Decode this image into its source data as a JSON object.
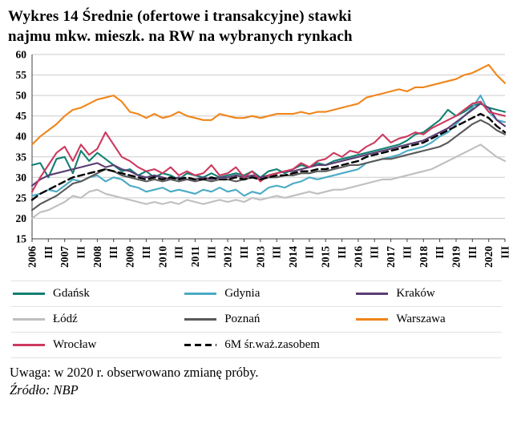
{
  "title": "Wykres 14 Średnie (ofertowe i transakcyjne) stawki\nnajmu mkw. mieszk. na RW na wybranych rynkach",
  "note": "Uwaga: w 2020 r. obserwowano zmianę próby.",
  "source": "Źródło: NBP",
  "chart_data": {
    "type": "line",
    "title": "Wykres 14 Średnie (ofertowe i transakcyjne) stawki najmu mkw. mieszk. na RW na wybranych rynkach",
    "ylabel": "",
    "xlabel": "",
    "ylim": [
      15,
      60
    ],
    "yticks": [
      15,
      20,
      25,
      30,
      35,
      40,
      45,
      50,
      55,
      60
    ],
    "grid": "horizontal",
    "legend_position": "bottom",
    "x_tick_labels": [
      "2006",
      "",
      "III",
      "",
      "2007",
      "",
      "III",
      "",
      "2008",
      "",
      "III",
      "",
      "2009",
      "",
      "III",
      "",
      "2010",
      "",
      "III",
      "",
      "2011",
      "",
      "III",
      "",
      "2012",
      "",
      "III",
      "",
      "2013",
      "",
      "III",
      "",
      "2014",
      "",
      "III",
      "",
      "2015",
      "",
      "III",
      "",
      "2016",
      "",
      "III",
      "",
      "2017",
      "",
      "III",
      "",
      "2018",
      "",
      "III",
      "",
      "2019",
      "",
      "III",
      "",
      "2020",
      "",
      "III"
    ],
    "series": [
      {
        "id": "gdansk",
        "name": "Gdańsk",
        "color": "#128073",
        "dash": false,
        "values": [
          33,
          33.5,
          30,
          34.5,
          35,
          31,
          36.5,
          34,
          36,
          34.5,
          33,
          31.5,
          32,
          30.5,
          31.5,
          30,
          31,
          30.5,
          29.5,
          31,
          30.5,
          30,
          31,
          30,
          30.5,
          31,
          30.5,
          31.5,
          30,
          31.5,
          32,
          31,
          32,
          33,
          32.5,
          33.5,
          33,
          34,
          34.5,
          35,
          35.5,
          36,
          36.5,
          37,
          37.5,
          38,
          39,
          40.5,
          41,
          42.5,
          44,
          46.5,
          45,
          46,
          47.5,
          48,
          47,
          46.5,
          46
        ]
      },
      {
        "id": "gdynia",
        "name": "Gdynia",
        "color": "#4aabc5",
        "dash": false,
        "values": [
          25.5,
          26,
          27,
          26.5,
          28,
          29.5,
          29,
          30,
          30.5,
          29,
          30,
          29.5,
          28,
          27.5,
          26.5,
          27,
          27.5,
          26.5,
          27,
          26.5,
          26,
          27,
          26.5,
          27.5,
          26.5,
          27,
          25.5,
          26.5,
          26,
          27.5,
          28,
          27.5,
          28.5,
          29,
          30,
          29.5,
          30,
          30.5,
          31,
          31.5,
          32,
          33.5,
          34,
          34.5,
          35,
          35.5,
          36.5,
          37,
          37.5,
          38.5,
          40,
          41,
          43,
          45,
          47,
          50,
          46,
          44,
          43.5
        ]
      },
      {
        "id": "krakow",
        "name": "Kraków",
        "color": "#5a3d72",
        "dash": false,
        "values": [
          28,
          29.5,
          30.5,
          31,
          31.5,
          32,
          32.5,
          33,
          33.5,
          32.5,
          33,
          32,
          31.5,
          30.5,
          30,
          30.5,
          30,
          29.5,
          30,
          29.5,
          29.5,
          30,
          29.5,
          30,
          30,
          30.5,
          30,
          30.5,
          30,
          30.5,
          31,
          31.5,
          31.5,
          32,
          32.5,
          33,
          33,
          33.5,
          34,
          34.5,
          35,
          35.5,
          36,
          36.5,
          37,
          37.5,
          38,
          38.5,
          39,
          40,
          41,
          42,
          43.5,
          45,
          46.5,
          48,
          47,
          44,
          42.5
        ]
      },
      {
        "id": "lodz",
        "name": "Łódź",
        "color": "#bfbfbf",
        "dash": false,
        "values": [
          20,
          21.5,
          22,
          23,
          24,
          25.5,
          25,
          26.5,
          27,
          26,
          25.5,
          25,
          24.5,
          24,
          23.5,
          24,
          23.5,
          24,
          23.5,
          24.5,
          24,
          23.5,
          24,
          24.5,
          24,
          24.5,
          24,
          25,
          24.5,
          25,
          25.5,
          25,
          25.5,
          26,
          26.5,
          26,
          26.5,
          27,
          27,
          27.5,
          28,
          28.5,
          29,
          29.5,
          29.5,
          30,
          30.5,
          31,
          31.5,
          32,
          33,
          34,
          35,
          36,
          37,
          38,
          36.5,
          35,
          34
        ]
      },
      {
        "id": "poznan",
        "name": "Poznań",
        "color": "#595959",
        "dash": false,
        "values": [
          22,
          23.5,
          24.5,
          25.5,
          27,
          28.5,
          29,
          30,
          31,
          32,
          31.5,
          30.5,
          30,
          29.5,
          29,
          29.5,
          29,
          29.5,
          29,
          29.5,
          29,
          29.5,
          29,
          29.5,
          29.5,
          29,
          29.5,
          30,
          29.5,
          30,
          30,
          30.5,
          30.5,
          31,
          31,
          31.5,
          31.5,
          32,
          32.5,
          33,
          33,
          33.5,
          34,
          34.5,
          34.5,
          35,
          35.5,
          36,
          36.5,
          37,
          37.5,
          38.5,
          40,
          41.5,
          43,
          44,
          43,
          41.5,
          40.5
        ]
      },
      {
        "id": "warszawa",
        "name": "Warszawa",
        "color": "#f08519",
        "dash": false,
        "values": [
          38,
          40,
          41.5,
          43,
          45,
          46.5,
          47,
          48,
          49,
          49.5,
          50,
          48.5,
          46,
          45.5,
          44.5,
          45.5,
          44.5,
          45,
          46,
          45,
          44.5,
          44,
          44,
          45.5,
          45,
          44.5,
          44.5,
          45,
          44.5,
          45,
          45.5,
          45.5,
          45.5,
          46,
          45.5,
          46,
          46,
          46.5,
          47,
          47.5,
          48,
          49.5,
          50,
          50.5,
          51,
          51.5,
          51,
          52,
          52,
          52.5,
          53,
          53.5,
          54,
          55,
          55.5,
          56.5,
          57.5,
          55,
          53
        ]
      },
      {
        "id": "wroclaw",
        "name": "Wrocław",
        "color": "#cc3a5f",
        "dash": false,
        "values": [
          26.5,
          30,
          33,
          36,
          37.5,
          34,
          38,
          35.5,
          37,
          41,
          38,
          35,
          34,
          32.5,
          31.5,
          32,
          31,
          32.5,
          30.5,
          31.5,
          30.5,
          31,
          33,
          30.5,
          31,
          32.5,
          30,
          31.5,
          29,
          30.5,
          31,
          31.5,
          32,
          33.5,
          32.5,
          34,
          34.5,
          36,
          35,
          36.5,
          36,
          37.5,
          38.5,
          40.5,
          38.5,
          39.5,
          40,
          41,
          40.5,
          42,
          43,
          44,
          45,
          46.5,
          48,
          48.5,
          46,
          45.5,
          45
        ]
      },
      {
        "id": "6m",
        "name": "6M śr.waż.zasobem",
        "color": "#000000",
        "dash": true,
        "values": [
          24.5,
          26,
          27,
          28,
          29,
          30,
          30.5,
          31,
          31.5,
          32,
          31.5,
          31,
          30.5,
          30,
          29.5,
          30,
          29.5,
          30,
          29.5,
          30,
          29.5,
          29.5,
          30,
          29.5,
          29.5,
          30,
          29.5,
          30,
          29.5,
          30,
          30.5,
          30.5,
          31,
          31.5,
          31.5,
          32,
          32,
          32.5,
          33,
          33.5,
          34,
          35,
          35.5,
          36,
          36.5,
          37,
          37.5,
          38,
          38.5,
          39.5,
          40.5,
          41.5,
          42.5,
          43.5,
          44.5,
          45.5,
          44.5,
          42.5,
          41
        ]
      }
    ]
  }
}
